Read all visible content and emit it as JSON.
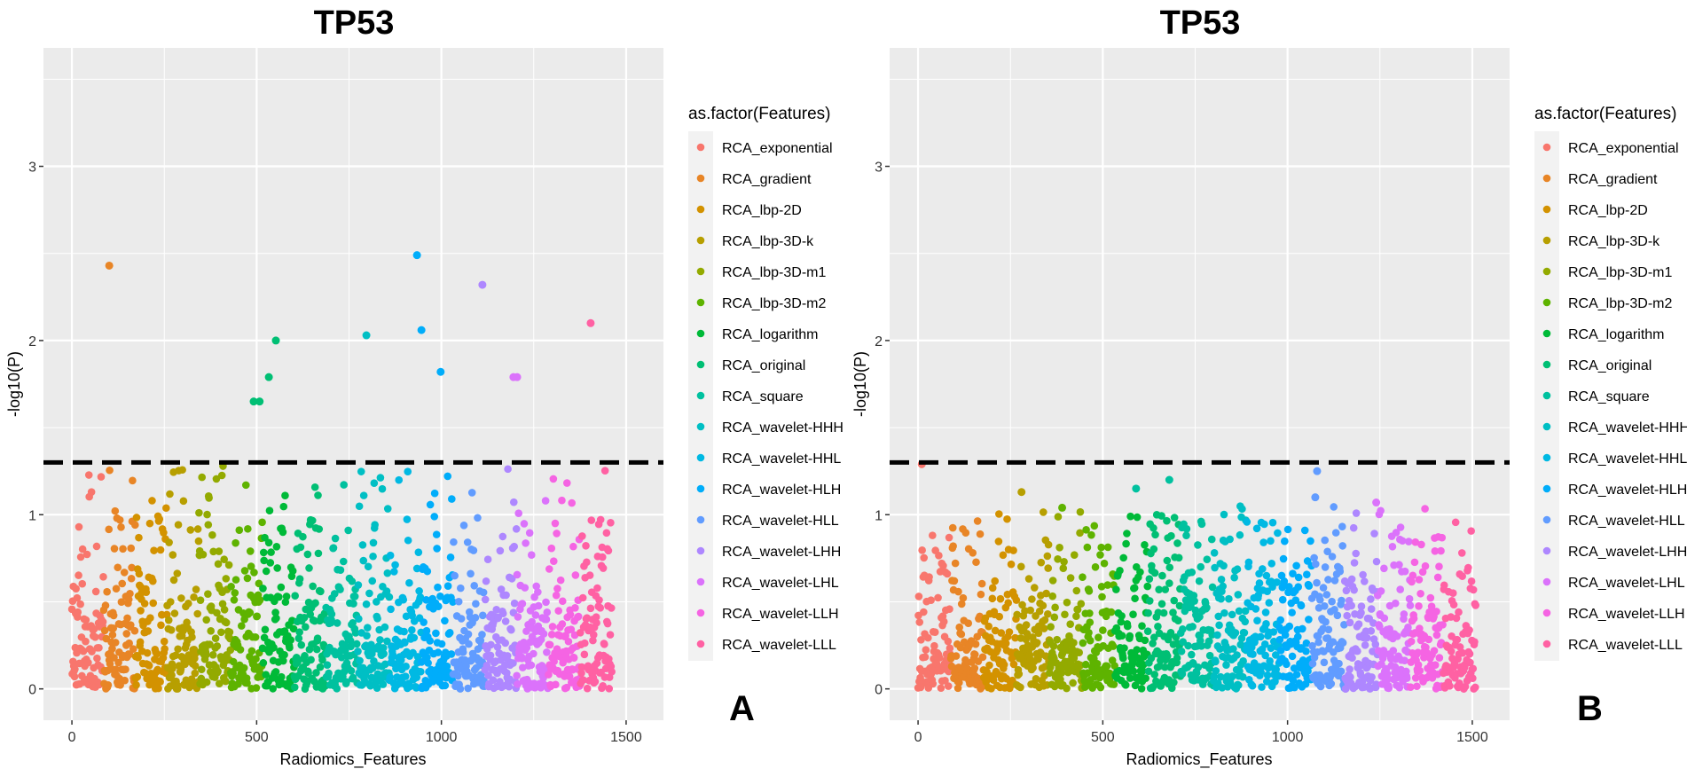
{
  "chart_data": [
    {
      "type": "scatter",
      "panel_label": "A",
      "title": "TP53",
      "xlabel": "Radiomics_Features",
      "ylabel": "-log10(P)",
      "xlim": [
        -77,
        1601
      ],
      "ylim": [
        -0.18,
        3.68
      ],
      "xticks": [
        0,
        500,
        1000,
        1500
      ],
      "yticks": [
        0,
        1,
        2,
        3
      ],
      "grid": true,
      "threshold": 1.3,
      "n_features": 1462,
      "max_nonsignificant": 1.28,
      "legend_title": "as.factor(Features)",
      "legend_position": "right",
      "significant_points": [
        {
          "x": 101,
          "y": 2.43,
          "group": 1
        },
        {
          "x": 934,
          "y": 2.49,
          "group": 11
        },
        {
          "x": 1111,
          "y": 2.32,
          "group": 13
        },
        {
          "x": 1404,
          "y": 2.1,
          "group": 16
        },
        {
          "x": 946,
          "y": 2.06,
          "group": 11
        },
        {
          "x": 797,
          "y": 2.03,
          "group": 9
        },
        {
          "x": 552,
          "y": 2.0,
          "group": 7
        },
        {
          "x": 998,
          "y": 1.82,
          "group": 11
        },
        {
          "x": 533,
          "y": 1.79,
          "group": 7
        },
        {
          "x": 1195,
          "y": 1.79,
          "group": 14
        },
        {
          "x": 1205,
          "y": 1.79,
          "group": 14
        },
        {
          "x": 492,
          "y": 1.65,
          "group": 7
        },
        {
          "x": 508,
          "y": 1.65,
          "group": 7
        }
      ]
    },
    {
      "type": "scatter",
      "panel_label": "B",
      "title": "TP53",
      "xlabel": "Radiomics_Features",
      "ylabel": "-log10(P)",
      "xlim": [
        -77,
        1601
      ],
      "ylim": [
        -0.18,
        3.68
      ],
      "xticks": [
        0,
        500,
        1000,
        1500
      ],
      "yticks": [
        0,
        1,
        2,
        3
      ],
      "grid": true,
      "threshold": 1.3,
      "n_features": 1510,
      "max_nonsignificant": 1.05,
      "legend_title": "as.factor(Features)",
      "legend_position": "right",
      "significant_points": [
        {
          "x": 10,
          "y": 1.29,
          "group": 0
        },
        {
          "x": 1080,
          "y": 1.25,
          "group": 12
        },
        {
          "x": 1075,
          "y": 1.1,
          "group": 12
        },
        {
          "x": 680,
          "y": 1.2,
          "group": 8
        },
        {
          "x": 590,
          "y": 1.15,
          "group": 8
        },
        {
          "x": 280,
          "y": 1.13,
          "group": 3
        },
        {
          "x": 390,
          "y": 1.04,
          "group": 5
        },
        {
          "x": 1240,
          "y": 1.07,
          "group": 14
        }
      ]
    }
  ],
  "legend_items": [
    {
      "label": "RCA_exponential",
      "color": "#F8766D"
    },
    {
      "label": "RCA_gradient",
      "color": "#E88526"
    },
    {
      "label": "RCA_lbp-2D",
      "color": "#D39200"
    },
    {
      "label": "RCA_lbp-3D-k",
      "color": "#B79F00"
    },
    {
      "label": "RCA_lbp-3D-m1",
      "color": "#93AA00"
    },
    {
      "label": "RCA_lbp-3D-m2",
      "color": "#5EB300"
    },
    {
      "label": "RCA_logarithm",
      "color": "#00BA38"
    },
    {
      "label": "RCA_original",
      "color": "#00BF74"
    },
    {
      "label": "RCA_square",
      "color": "#00C19F"
    },
    {
      "label": "RCA_wavelet-HHH",
      "color": "#00BFC4"
    },
    {
      "label": "RCA_wavelet-HHL",
      "color": "#00B9E3"
    },
    {
      "label": "RCA_wavelet-HLH",
      "color": "#00ADFA"
    },
    {
      "label": "RCA_wavelet-HLL",
      "color": "#619CFF"
    },
    {
      "label": "RCA_wavelet-LHH",
      "color": "#AE87FF"
    },
    {
      "label": "RCA_wavelet-LHL",
      "color": "#DB72FB"
    },
    {
      "label": "RCA_wavelet-LLH",
      "color": "#F564E3"
    },
    {
      "label": "RCA_wavelet-LLL",
      "color": "#FF61A3"
    }
  ],
  "colors": {
    "panel_bg": "#EBEBEB",
    "grid": "#FFFFFF",
    "threshold": "#000000"
  }
}
